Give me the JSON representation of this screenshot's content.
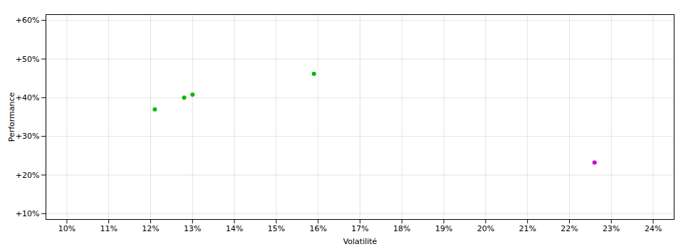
{
  "chart_data": {
    "type": "scatter",
    "xlabel": "Volatilité",
    "ylabel": "Performance",
    "series": [
      {
        "color": "#00bb00",
        "x": [
          0.121,
          0.128,
          0.13,
          0.159
        ],
        "values": [
          0.37,
          0.4,
          0.408,
          0.462
        ]
      },
      {
        "color": "#cc00cc",
        "x": [
          0.226
        ],
        "values": [
          0.232
        ]
      }
    ],
    "xlim": [
      0.095,
      0.245
    ],
    "ylim": [
      0.085,
      0.615
    ],
    "xticks": [
      {
        "value": 0.1,
        "label": "10%"
      },
      {
        "value": 0.11,
        "label": "11%"
      },
      {
        "value": 0.12,
        "label": "12%"
      },
      {
        "value": 0.13,
        "label": "13%"
      },
      {
        "value": 0.14,
        "label": "14%"
      },
      {
        "value": 0.15,
        "label": "15%"
      },
      {
        "value": 0.16,
        "label": "16%"
      },
      {
        "value": 0.17,
        "label": "17%"
      },
      {
        "value": 0.18,
        "label": "18%"
      },
      {
        "value": 0.19,
        "label": "19%"
      },
      {
        "value": 0.2,
        "label": "20%"
      },
      {
        "value": 0.21,
        "label": "21%"
      },
      {
        "value": 0.22,
        "label": "22%"
      },
      {
        "value": 0.23,
        "label": "23%"
      },
      {
        "value": 0.24,
        "label": "24%"
      }
    ],
    "yticks": [
      {
        "value": 0.1,
        "label": "+10%"
      },
      {
        "value": 0.2,
        "label": "+20%"
      },
      {
        "value": 0.3,
        "label": "+30%"
      },
      {
        "value": 0.4,
        "label": "+40%"
      },
      {
        "value": 0.5,
        "label": "+50%"
      },
      {
        "value": 0.6,
        "label": "+60%"
      }
    ],
    "grid": true
  }
}
